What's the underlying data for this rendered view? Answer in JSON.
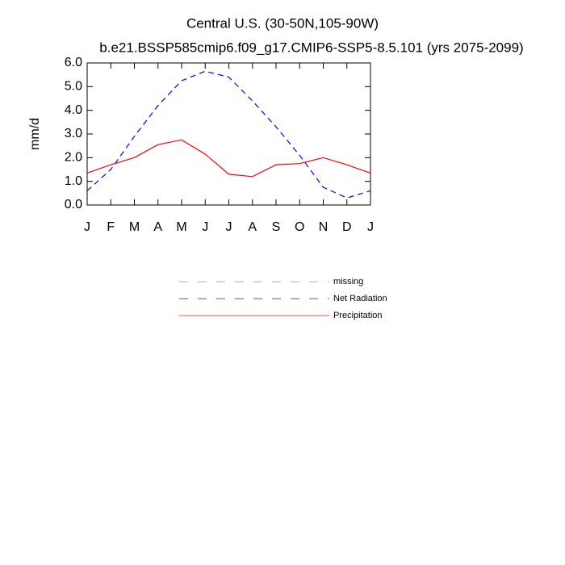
{
  "chart_data": {
    "type": "line",
    "title": "Central U.S. (30-50N,105-90W)",
    "subtitle": "b.e21.BSSP585cmip6.f09_g17.CMIP6-SSP5-8.5.101 (yrs 2075-2099)",
    "y_label": "mm/d",
    "categories": [
      "J",
      "F",
      "M",
      "A",
      "M",
      "J",
      "J",
      "A",
      "S",
      "O",
      "N",
      "D",
      "J"
    ],
    "series": [
      {
        "name": "missing",
        "color": "#888888",
        "linestyle": "dashed",
        "values": [
          null,
          null,
          null,
          null,
          null,
          null,
          null,
          null,
          null,
          null,
          null,
          null,
          null
        ]
      },
      {
        "name": "Net Radiation",
        "color": "#0000ff",
        "linestyle": "dashed",
        "values": [
          0.6,
          1.5,
          2.9,
          4.2,
          5.25,
          5.65,
          5.4,
          4.4,
          3.3,
          2.1,
          0.75,
          0.3,
          0.6
        ]
      },
      {
        "name": "Precipitation",
        "color": "#ff0000",
        "linestyle": "solid",
        "values": [
          1.35,
          1.7,
          2.0,
          2.55,
          2.75,
          2.15,
          1.3,
          1.2,
          1.7,
          1.75,
          2.0,
          1.7,
          1.35
        ]
      }
    ],
    "ylim": [
      0,
      6
    ],
    "yticks": [
      {
        "value": 0,
        "label": "0.0"
      },
      {
        "value": 1,
        "label": "1.0"
      },
      {
        "value": 2,
        "label": "2.0"
      },
      {
        "value": 3,
        "label": "3.0"
      },
      {
        "value": 4,
        "label": "4.0"
      },
      {
        "value": 5,
        "label": "5.0"
      },
      {
        "value": 6,
        "label": "6.0"
      }
    ],
    "legend": "below"
  }
}
